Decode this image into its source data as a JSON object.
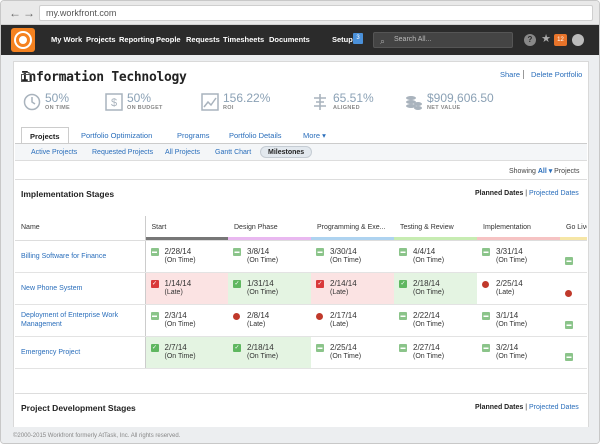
{
  "browser": {
    "url": "my.workfront.com",
    "back": "←",
    "forward": "→"
  },
  "topnav": {
    "items": [
      "My Work",
      "Projects",
      "Reporting",
      "People",
      "Requests",
      "Timesheets",
      "Documents"
    ],
    "setup": "Setup",
    "setup_badge": "3",
    "search_placeholder": "Search All...",
    "help": "?",
    "star": "★",
    "notification_count": "12"
  },
  "portfolio": {
    "title": "Information Technology",
    "share": "Share",
    "delete": "Delete Portfolio",
    "metrics": [
      {
        "value": "50%",
        "label": "ON TIME",
        "icon": "clock-icon"
      },
      {
        "value": "50%",
        "label": "ON BUDGET",
        "icon": "dollar-icon"
      },
      {
        "value": "156.22%",
        "label": "ROI",
        "icon": "chart-icon"
      },
      {
        "value": "65.51%",
        "label": "ALIGNED",
        "icon": "align-icon"
      },
      {
        "value": "$909,606.50",
        "label": "NET VALUE",
        "icon": "coins-icon"
      }
    ]
  },
  "tabs": [
    "Projects",
    "Portfolio Optimization",
    "Programs",
    "Portfolio Details",
    "More ▾"
  ],
  "subtabs": [
    "Active Projects",
    "Requested Projects",
    "All Projects",
    "Gantt Chart",
    "Milestones"
  ],
  "showing": {
    "prefix": "Showing",
    "value": "All ▾",
    "suffix": "Projects"
  },
  "section1": {
    "title": "Implementation Stages",
    "planned": "Planned Dates",
    "sep": "|",
    "projected": "Projected Dates"
  },
  "section2": {
    "title": "Project Development Stages",
    "planned": "Planned Dates",
    "sep": "|",
    "projected": "Projected Dates"
  },
  "table": {
    "headers": [
      "Name",
      "Start",
      "Design Phase",
      "Programming & Exe...",
      "Testing & Review",
      "Implementation",
      "Go Live!"
    ],
    "header_colors": [
      "#ffffff",
      "#777777",
      "#e9b8f0",
      "#aed3f0",
      "#c7ecb2",
      "#f6c3c3",
      "#f6e6a6"
    ],
    "rows": [
      {
        "name": "Billing Software for Finance",
        "cells": [
          {
            "date": "2/28/14",
            "status": "(On Time)",
            "icon": "pend",
            "bg": ""
          },
          {
            "date": "3/8/14",
            "status": "(On Time)",
            "icon": "pend",
            "bg": ""
          },
          {
            "date": "3/30/14",
            "status": "(On Time)",
            "icon": "pend",
            "bg": ""
          },
          {
            "date": "4/4/14",
            "status": "(On Time)",
            "icon": "pend",
            "bg": ""
          },
          {
            "date": "3/31/14",
            "status": "(On Time)",
            "icon": "pend",
            "bg": ""
          },
          {
            "date": "",
            "status": "",
            "icon": "pend",
            "bg": ""
          }
        ]
      },
      {
        "name": "New Phone System",
        "cells": [
          {
            "date": "1/14/14",
            "status": "(Late)",
            "icon": "late",
            "bg": "bg-late"
          },
          {
            "date": "1/31/14",
            "status": "(On Time)",
            "icon": "ok",
            "bg": "bg-done"
          },
          {
            "date": "2/14/14",
            "status": "(Late)",
            "icon": "late",
            "bg": "bg-late"
          },
          {
            "date": "2/18/14",
            "status": "(On Time)",
            "icon": "ok",
            "bg": "bg-done"
          },
          {
            "date": "2/25/14",
            "status": "(Late)",
            "icon": "dot",
            "bg": ""
          },
          {
            "date": "",
            "status": "",
            "icon": "dot",
            "bg": ""
          }
        ]
      },
      {
        "name": "Deployment of Enterprise Work Management",
        "cells": [
          {
            "date": "2/3/14",
            "status": "(On Time)",
            "icon": "pend",
            "bg": ""
          },
          {
            "date": "2/8/14",
            "status": "(Late)",
            "icon": "dot",
            "bg": ""
          },
          {
            "date": "2/17/14",
            "status": "(Late)",
            "icon": "dot",
            "bg": ""
          },
          {
            "date": "2/22/14",
            "status": "(On Time)",
            "icon": "pend",
            "bg": ""
          },
          {
            "date": "3/1/14",
            "status": "(On Time)",
            "icon": "pend",
            "bg": ""
          },
          {
            "date": "",
            "status": "",
            "icon": "pend",
            "bg": ""
          }
        ]
      },
      {
        "name": "Emergency Project",
        "cells": [
          {
            "date": "2/7/14",
            "status": "(On Time)",
            "icon": "ok",
            "bg": "bg-done"
          },
          {
            "date": "2/18/14",
            "status": "(On Time)",
            "icon": "ok",
            "bg": "bg-done"
          },
          {
            "date": "2/25/14",
            "status": "(On Time)",
            "icon": "pend",
            "bg": ""
          },
          {
            "date": "2/27/14",
            "status": "(On Time)",
            "icon": "pend",
            "bg": ""
          },
          {
            "date": "3/2/14",
            "status": "(On Time)",
            "icon": "pend",
            "bg": ""
          },
          {
            "date": "",
            "status": "",
            "icon": "pend",
            "bg": ""
          }
        ]
      }
    ]
  },
  "footer": "©2000-2015 Workfront formerly AtTask, Inc. All rights reserved."
}
